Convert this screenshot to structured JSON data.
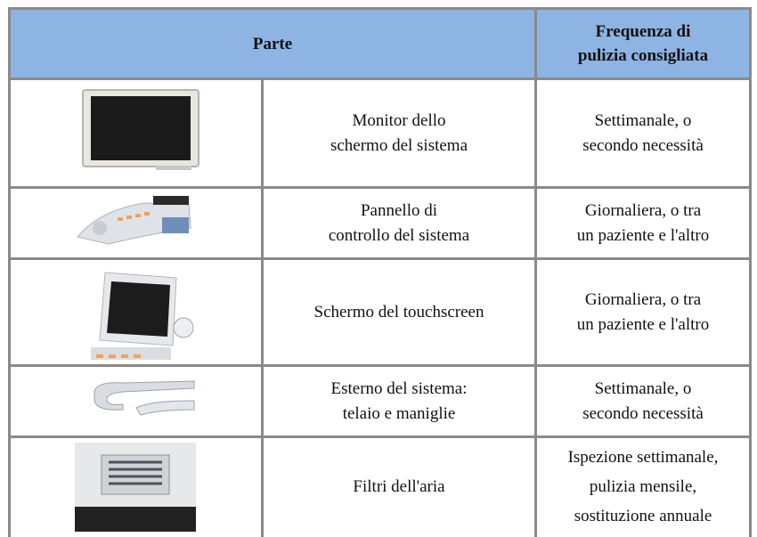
{
  "header": {
    "part": "Parte",
    "frequency": [
      "Frequenza di",
      "pulizia consigliata"
    ]
  },
  "rows": [
    {
      "part": [
        "Monitor dello",
        "schermo del sistema"
      ],
      "frequency": [
        "Settimanale, o",
        "secondo necessità"
      ]
    },
    {
      "part": [
        "Pannello di",
        "controllo del sistema"
      ],
      "frequency": [
        "Giornaliera, o tra",
        "un paziente e l'altro"
      ]
    },
    {
      "part": [
        "Schermo del touchscreen"
      ],
      "frequency": [
        "Giornaliera, o tra",
        "un paziente e l'altro"
      ]
    },
    {
      "part": [
        "Esterno del sistema:",
        "telaio e maniglie"
      ],
      "frequency": [
        "Settimanale, o",
        "secondo necessità"
      ]
    },
    {
      "part": [
        "Filtri dell'aria"
      ],
      "frequency": [
        "Ispezione settimanale,",
        "pulizia mensile,",
        "sostituzione annuale"
      ]
    }
  ]
}
